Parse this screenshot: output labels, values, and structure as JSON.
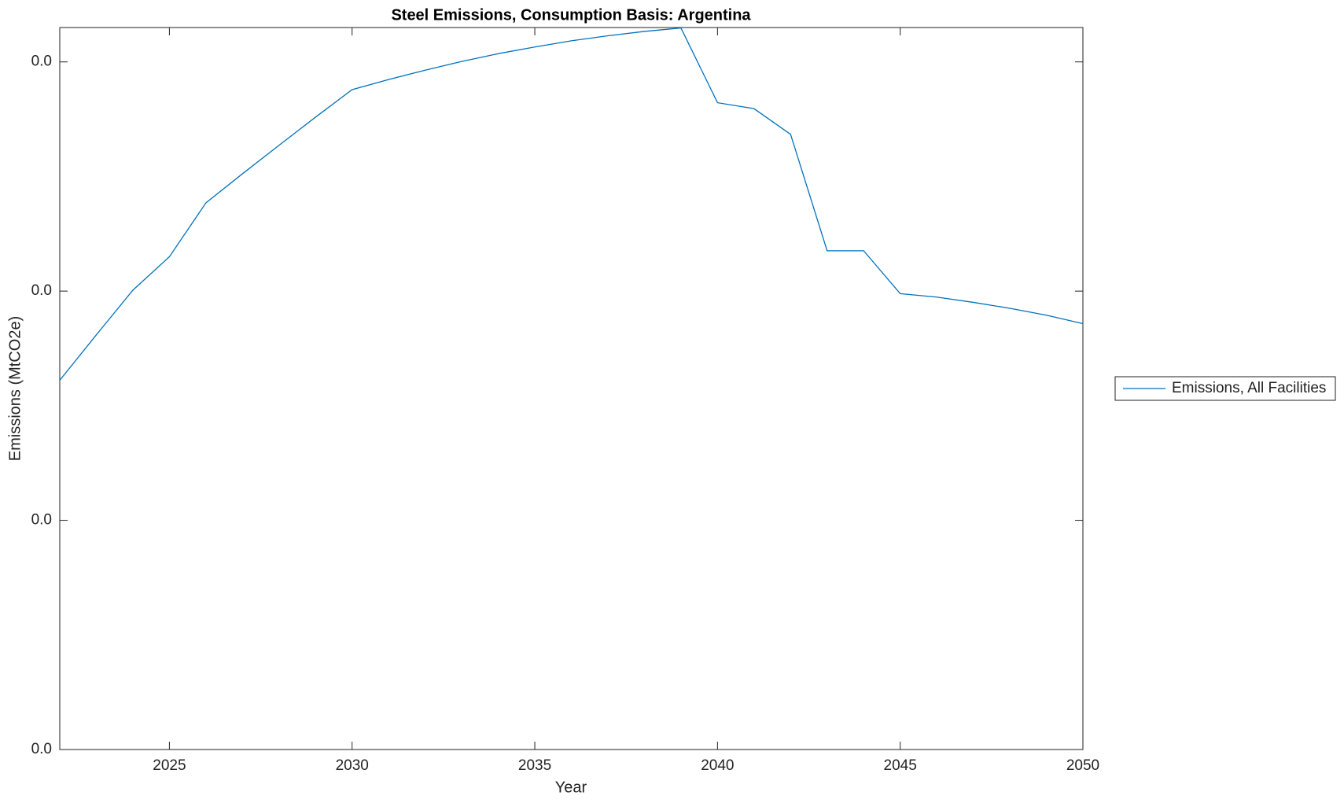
{
  "chart_data": {
    "type": "line",
    "title": "Steel Emissions, Consumption Basis: Argentina",
    "x_label": "Year",
    "y_label": "Emissions (MtCO2e)",
    "x": [
      2022,
      2023,
      2024,
      2025,
      2026,
      2027,
      2028,
      2029,
      2030,
      2031,
      2032,
      2033,
      2034,
      2035,
      2036,
      2037,
      2038,
      2039,
      2040,
      2041,
      2042,
      2043,
      2044,
      2045,
      2046,
      2047,
      2048,
      2049,
      2050
    ],
    "series": [
      {
        "name": "Emissions, All Facilities",
        "color": "#0072bd",
        "values": [
          0.01611,
          0.01809,
          0.02004,
          0.0215,
          0.02385,
          0.02512,
          0.02636,
          0.02759,
          0.02879,
          0.02923,
          0.02964,
          0.03002,
          0.03036,
          0.03065,
          0.03092,
          0.03114,
          0.03133,
          0.03148,
          0.02822,
          0.02796,
          0.02684,
          0.02176,
          0.02176,
          0.01989,
          0.01974,
          0.01951,
          0.01925,
          0.01895,
          0.01858
        ]
      }
    ],
    "xlim": [
      2022,
      2050
    ],
    "xticks": [
      2025,
      2030,
      2035,
      2040,
      2045,
      2050
    ],
    "ylim": [
      0,
      0.0315
    ],
    "yticks": [
      {
        "value": 0,
        "label": "0.0"
      },
      {
        "value": 0.01,
        "label": "0.0"
      },
      {
        "value": 0.02,
        "label": "0.0"
      },
      {
        "value": 0.03,
        "label": "0.0"
      }
    ],
    "legend": "outside-right"
  }
}
